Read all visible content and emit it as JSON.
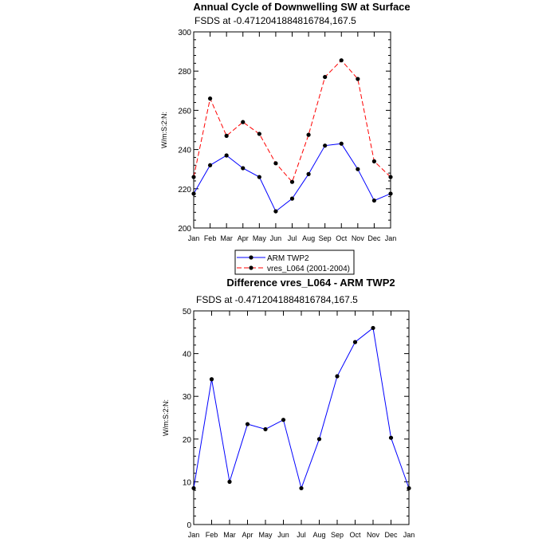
{
  "chart_data": [
    {
      "type": "line",
      "title": "Annual Cycle of Downwelling SW at Surface",
      "subtitle": "FSDS at -0.4712041884816784,167.5",
      "xlabel": "",
      "ylabel": "W/m:S:2:N:",
      "categories": [
        "Jan",
        "Feb",
        "Mar",
        "Apr",
        "May",
        "Jun",
        "Jul",
        "Aug",
        "Sep",
        "Oct",
        "Nov",
        "Dec",
        "Jan"
      ],
      "ylim": [
        200,
        300
      ],
      "yticks": [
        200,
        220,
        240,
        260,
        280,
        300
      ],
      "grid": false,
      "legend": "below",
      "series": [
        {
          "name": "ARM TWP2",
          "color": "#0000ff",
          "dash": "solid",
          "values": [
            217.5,
            232,
            237,
            230.5,
            226,
            208.5,
            215,
            227.5,
            242,
            243,
            230,
            214,
            217.5
          ]
        },
        {
          "name": "vres_L064 (2001-2004)",
          "color": "#ff0000",
          "dash": "dashed",
          "values": [
            226,
            266,
            247,
            254,
            248,
            233,
            223.5,
            247.5,
            277,
            285.5,
            276,
            234,
            226
          ]
        }
      ]
    },
    {
      "type": "line",
      "title": "Difference vres_L064 - ARM TWP2",
      "subtitle": "FSDS at -0.4712041884816784,167.5",
      "xlabel": "",
      "ylabel": "W/m:S:2:N:",
      "categories": [
        "Jan",
        "Feb",
        "Mar",
        "Apr",
        "May",
        "Jun",
        "Jul",
        "Aug",
        "Sep",
        "Oct",
        "Nov",
        "Dec",
        "Jan"
      ],
      "ylim": [
        0,
        50
      ],
      "yticks": [
        0,
        10,
        20,
        30,
        40,
        50
      ],
      "grid": false,
      "series": [
        {
          "color": "#0000ff",
          "dash": "solid",
          "values": [
            8.5,
            34,
            10,
            23.5,
            22.3,
            24.5,
            8.5,
            20,
            34.7,
            42.7,
            46,
            20.3,
            8.5
          ]
        }
      ]
    }
  ]
}
